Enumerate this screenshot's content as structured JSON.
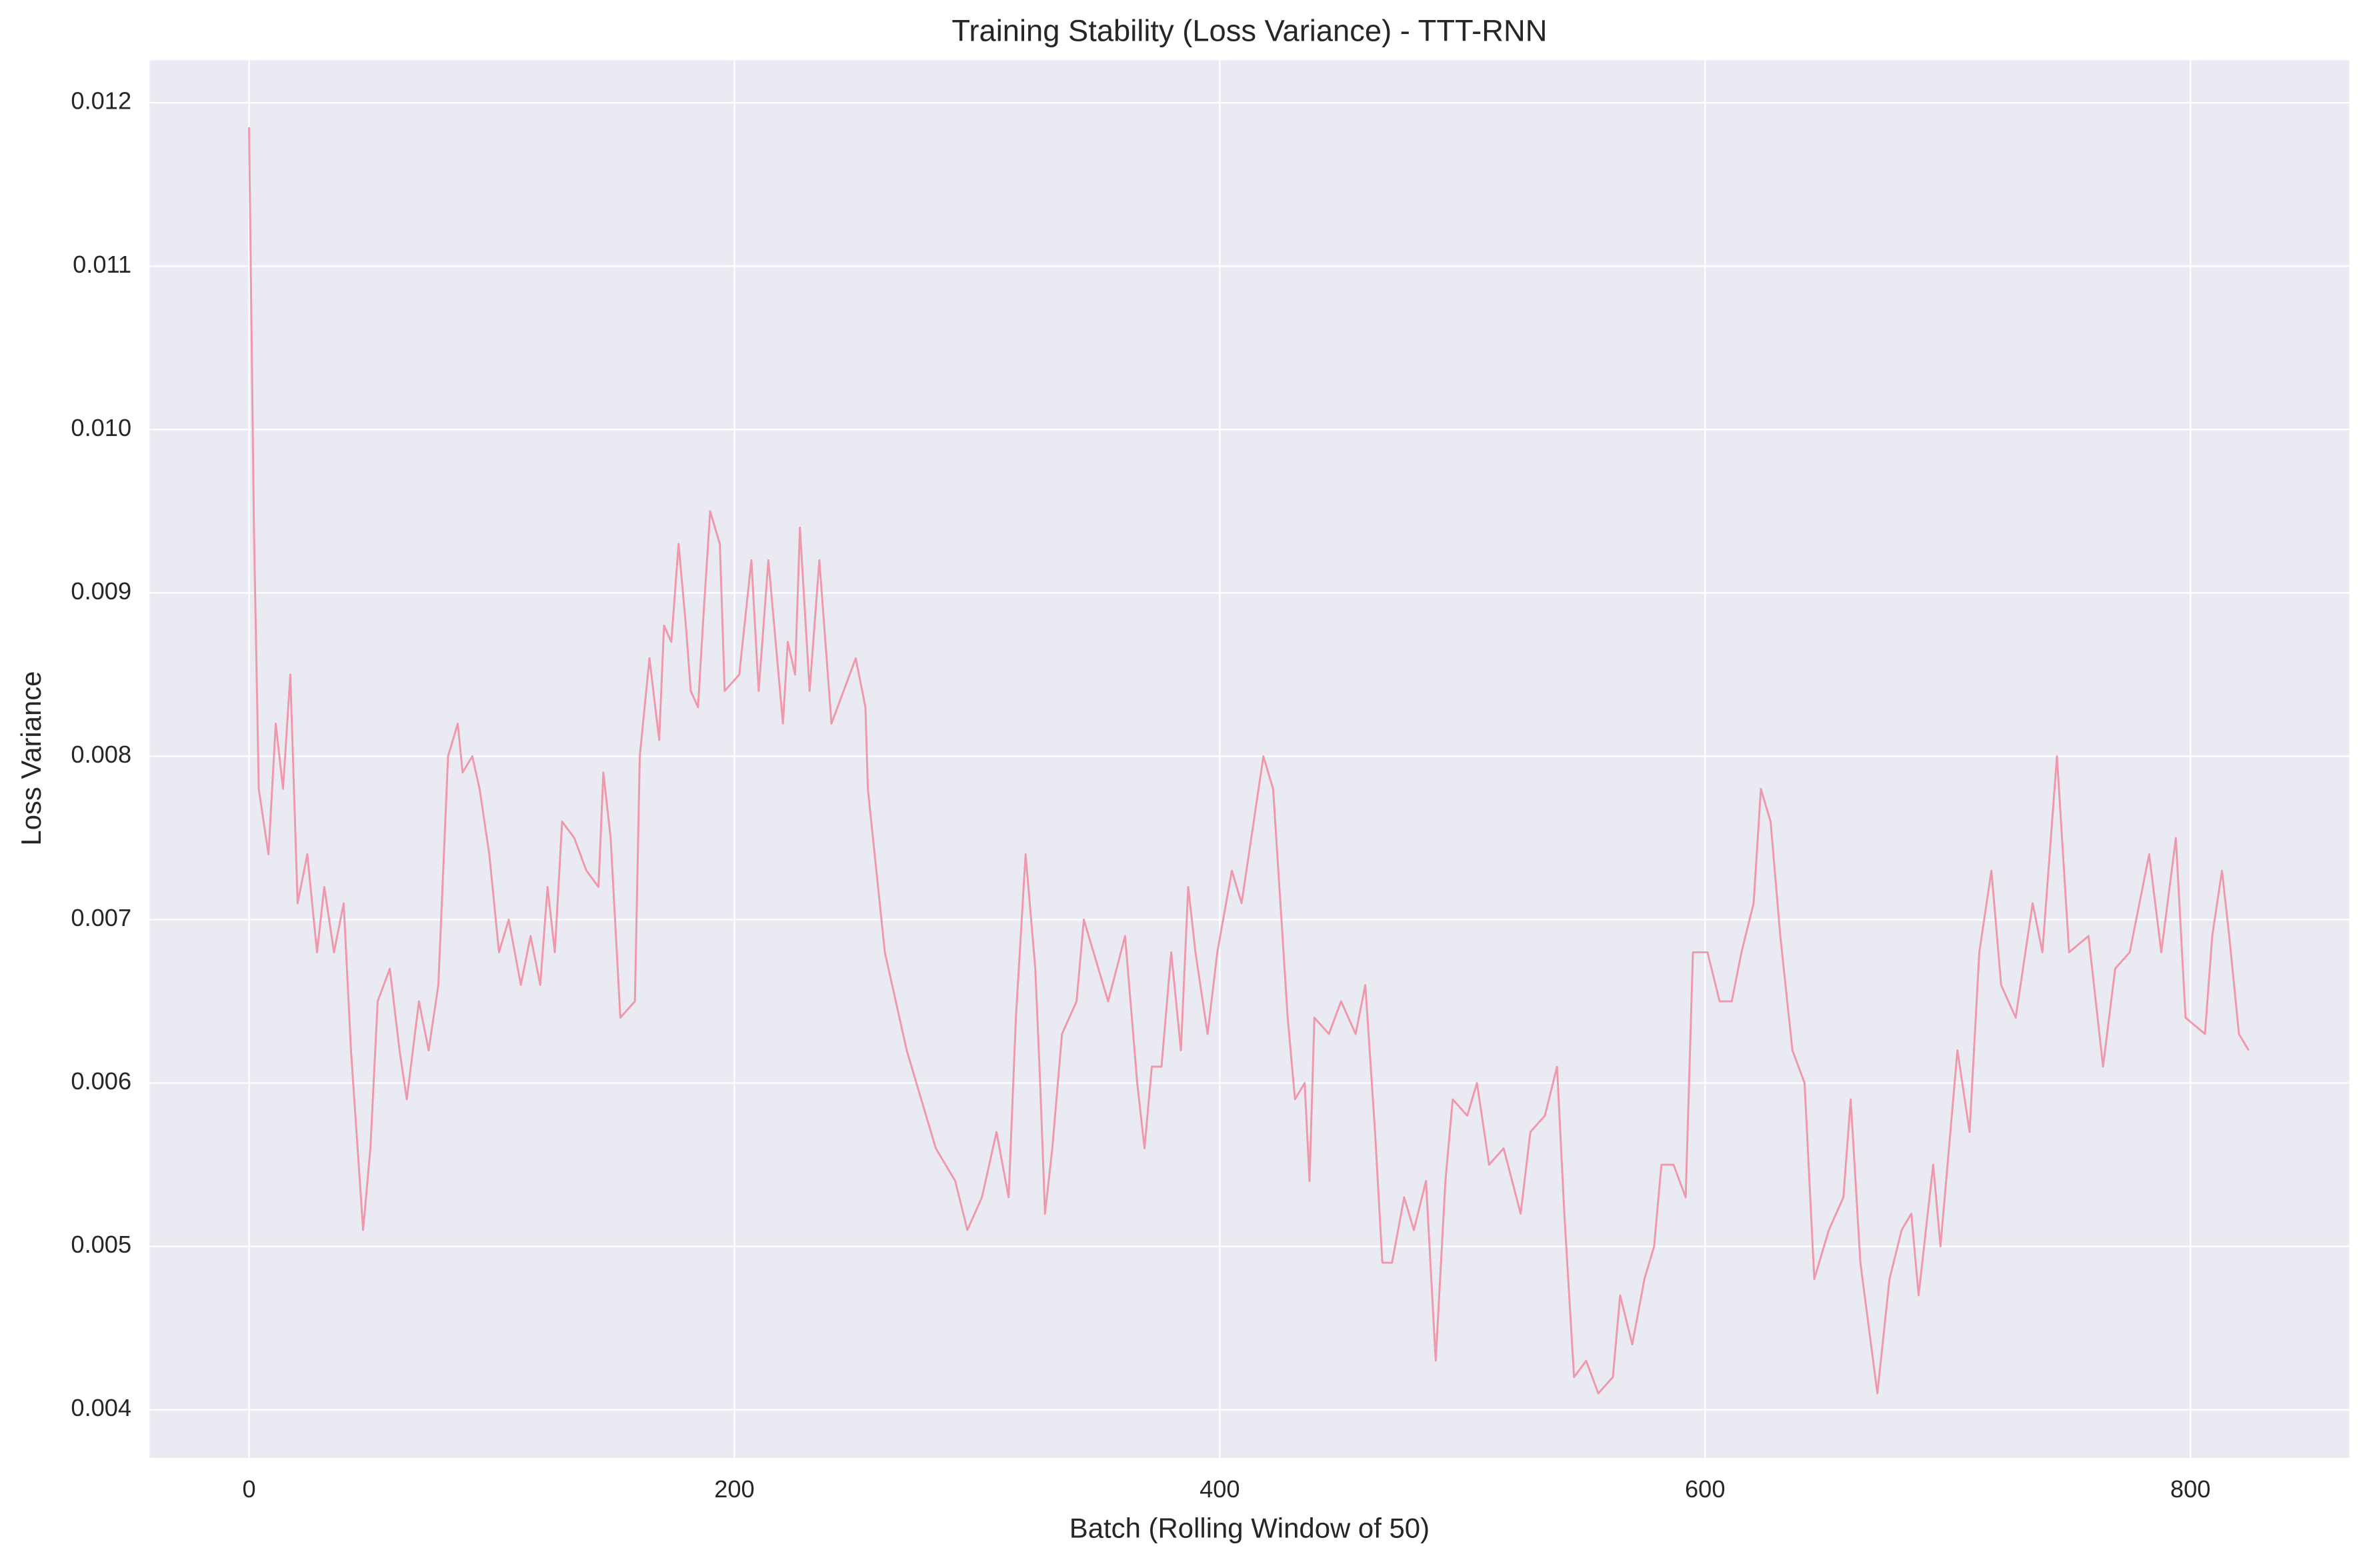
{
  "chart_data": {
    "type": "line",
    "title": "Training Stability (Loss Variance) - TTT-RNN",
    "xlabel": "Batch (Rolling Window of 50)",
    "ylabel": "Loss Variance",
    "x": [
      0,
      2,
      4,
      8,
      11,
      14,
      17,
      20,
      24,
      28,
      31,
      35,
      39,
      42,
      47,
      50,
      53,
      58,
      62,
      65,
      70,
      74,
      78,
      82,
      86,
      88,
      92,
      95,
      99,
      103,
      107,
      112,
      116,
      120,
      123,
      126,
      129,
      134,
      139,
      144,
      146,
      149,
      153,
      159,
      161,
      165,
      169,
      171,
      174,
      177,
      180,
      182,
      185,
      187,
      190,
      194,
      196,
      202,
      207,
      210,
      214,
      217,
      220,
      222,
      225,
      227,
      231,
      235,
      240,
      245,
      250,
      254,
      255,
      262,
      271,
      283,
      291,
      296,
      302,
      308,
      313,
      316,
      320,
      324,
      326,
      328,
      331,
      335,
      341,
      344,
      348,
      354,
      361,
      366,
      369,
      372,
      376,
      380,
      384,
      387,
      390,
      395,
      399,
      405,
      409,
      413,
      418,
      422,
      425,
      428,
      431,
      435,
      437,
      439,
      445,
      450,
      456,
      460,
      464,
      467,
      471,
      476,
      480,
      485,
      489,
      493,
      496,
      502,
      506,
      511,
      517,
      524,
      528,
      534,
      539,
      542,
      546,
      551,
      556,
      562,
      565,
      570,
      575,
      579,
      582,
      587,
      592,
      595,
      601,
      606,
      611,
      615,
      620,
      623,
      627,
      631,
      636,
      641,
      645,
      651,
      657,
      660,
      664,
      671,
      676,
      681,
      685,
      688,
      694,
      697,
      704,
      709,
      713,
      718,
      722,
      728,
      735,
      739,
      745,
      750,
      758,
      764,
      769,
      775,
      783,
      788,
      794,
      798,
      806,
      809,
      813,
      816,
      820,
      824
    ],
    "series": [
      {
        "name": "Loss Variance",
        "color": "#f08fa3",
        "values": [
          0.01185,
          0.0094,
          0.0078,
          0.0074,
          0.0082,
          0.0078,
          0.0085,
          0.0071,
          0.0074,
          0.0068,
          0.0072,
          0.0068,
          0.0071,
          0.0062,
          0.0051,
          0.0056,
          0.0065,
          0.0067,
          0.0062,
          0.0059,
          0.0065,
          0.0062,
          0.0066,
          0.008,
          0.0082,
          0.0079,
          0.008,
          0.0078,
          0.0074,
          0.0068,
          0.007,
          0.0066,
          0.0069,
          0.0066,
          0.0072,
          0.0068,
          0.0076,
          0.0075,
          0.0073,
          0.0072,
          0.0079,
          0.0075,
          0.0064,
          0.0065,
          0.008,
          0.0086,
          0.0081,
          0.0088,
          0.0087,
          0.0093,
          0.0088,
          0.0084,
          0.0083,
          0.0088,
          0.0095,
          0.0093,
          0.0084,
          0.0085,
          0.0092,
          0.0084,
          0.0092,
          0.0087,
          0.0082,
          0.0087,
          0.0085,
          0.0094,
          0.0084,
          0.0092,
          0.0082,
          0.0084,
          0.0086,
          0.0083,
          0.0078,
          0.0068,
          0.0062,
          0.0056,
          0.0054,
          0.0051,
          0.0053,
          0.0057,
          0.0053,
          0.0064,
          0.0074,
          0.0067,
          0.006,
          0.0052,
          0.0056,
          0.0063,
          0.0065,
          0.007,
          0.0068,
          0.0065,
          0.0069,
          0.006,
          0.0056,
          0.0061,
          0.0061,
          0.0068,
          0.0062,
          0.0072,
          0.0068,
          0.0063,
          0.0068,
          0.0073,
          0.0071,
          0.0075,
          0.008,
          0.0078,
          0.0071,
          0.0064,
          0.0059,
          0.006,
          0.0054,
          0.0064,
          0.0063,
          0.0065,
          0.0063,
          0.0066,
          0.0057,
          0.0049,
          0.0049,
          0.0053,
          0.0051,
          0.0054,
          0.0043,
          0.0054,
          0.0059,
          0.0058,
          0.006,
          0.0055,
          0.0056,
          0.0052,
          0.0057,
          0.0058,
          0.0061,
          0.0052,
          0.0042,
          0.0043,
          0.0041,
          0.0042,
          0.0047,
          0.0044,
          0.0048,
          0.005,
          0.0055,
          0.0055,
          0.0053,
          0.0068,
          0.0068,
          0.0065,
          0.0065,
          0.0068,
          0.0071,
          0.0078,
          0.0076,
          0.0069,
          0.0062,
          0.006,
          0.0048,
          0.0051,
          0.0053,
          0.0059,
          0.0049,
          0.0041,
          0.0048,
          0.0051,
          0.0052,
          0.0047,
          0.0055,
          0.005,
          0.0062,
          0.0057,
          0.0068,
          0.0073,
          0.0066,
          0.0064,
          0.0071,
          0.0068,
          0.008,
          0.0068,
          0.0069,
          0.0061,
          0.0067,
          0.0068,
          0.0074,
          0.0068,
          0.0075,
          0.0064,
          0.0063,
          0.0069,
          0.0073,
          0.0069,
          0.0063,
          0.0062
        ]
      }
    ],
    "xlim": [
      -41,
      865.5
    ],
    "ylim": [
      0.003705,
      0.01226
    ],
    "xticks": [
      0,
      200,
      400,
      600,
      800
    ],
    "yticks": [
      0.004,
      0.005,
      0.006,
      0.007,
      0.008,
      0.009,
      {
        "value": 0.01,
        "label": "0.010"
      },
      0.011,
      0.012
    ],
    "grid": true
  }
}
